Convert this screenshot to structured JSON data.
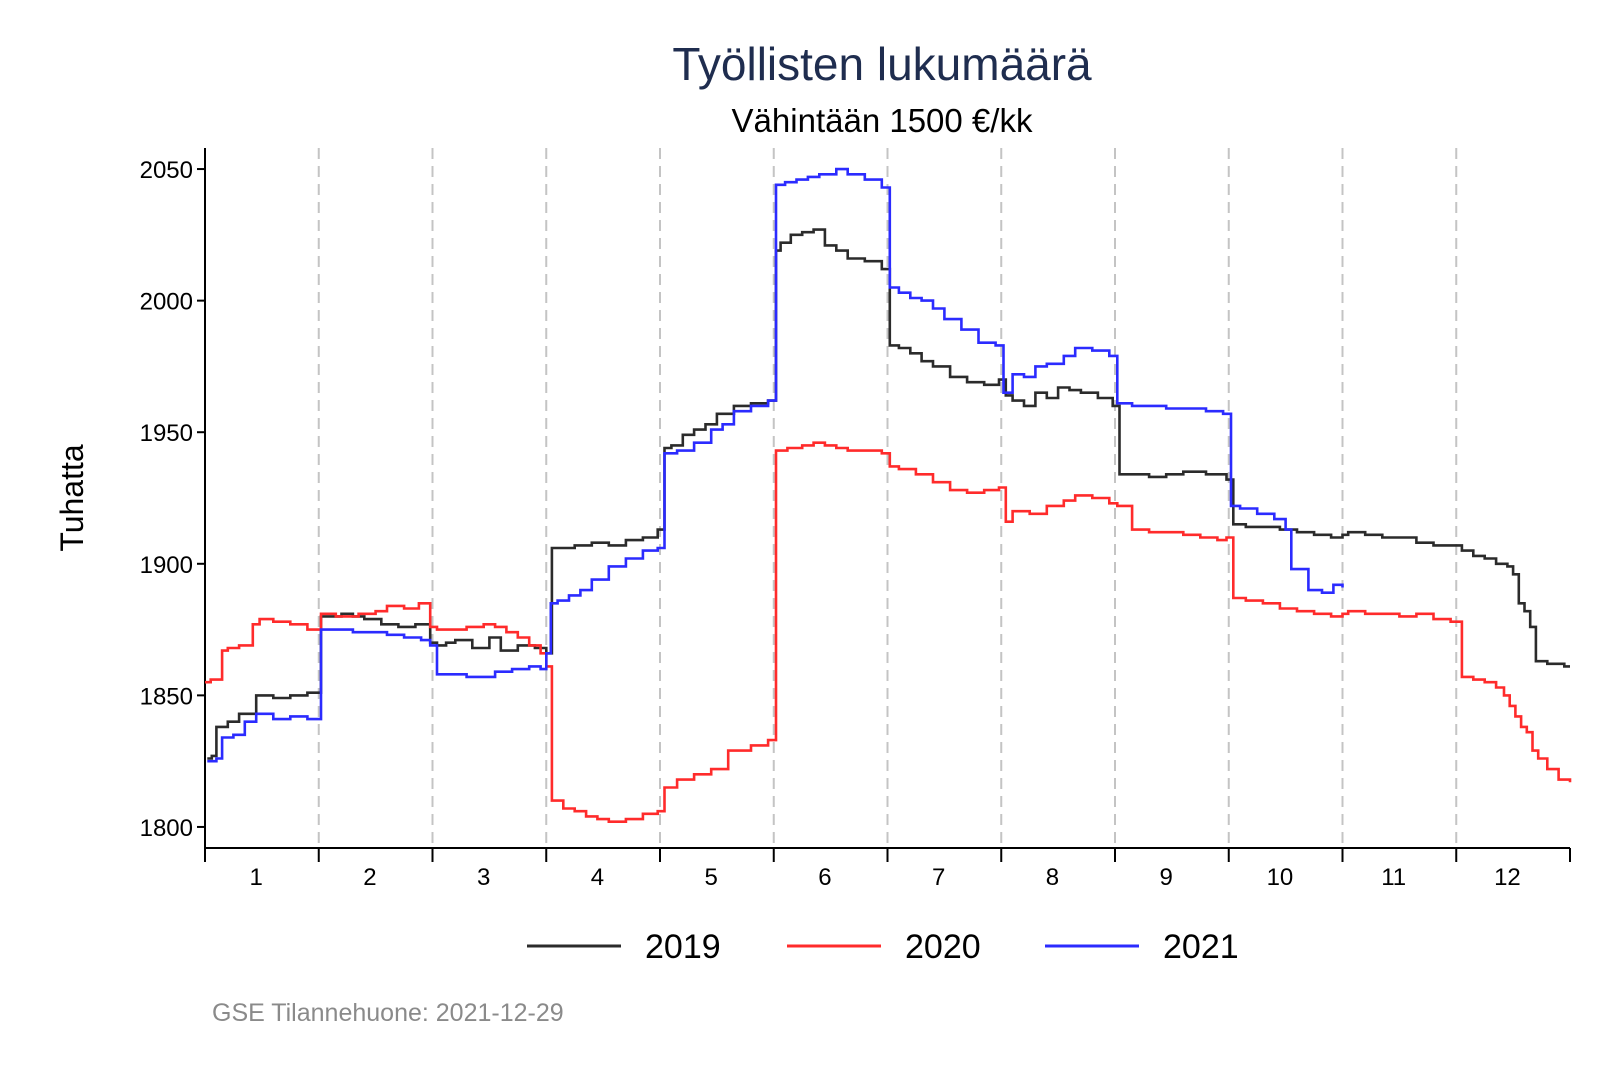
{
  "chart_data": {
    "type": "line",
    "title": "Työllisten lukumäärä",
    "subtitle": "Vähintään 1500 €/kk",
    "xlabel": "",
    "ylabel": "Tuhatta",
    "source": "GSE Tilannehuone: 2021-12-29",
    "x_categories": [
      "1",
      "2",
      "3",
      "4",
      "5",
      "6",
      "7",
      "8",
      "9",
      "10",
      "11",
      "12"
    ],
    "y_ticks": [
      1800,
      1850,
      1900,
      1950,
      2000,
      2050
    ],
    "ylim": [
      1792,
      2058
    ],
    "xlim": [
      1,
      13
    ],
    "month_boundaries": [
      2,
      3,
      4,
      5,
      6,
      7,
      8,
      9,
      10,
      11,
      12
    ],
    "grid": "dashed vertical lines at month boundaries",
    "legend_position": "bottom",
    "series": [
      {
        "name": "2019",
        "color": "#2b2b2b",
        "step": true,
        "x": [
          1.02,
          1.06,
          1.1,
          1.2,
          1.3,
          1.45,
          1.6,
          1.75,
          1.9,
          2.02,
          2.1,
          2.2,
          2.3,
          2.4,
          2.55,
          2.7,
          2.85,
          2.98,
          3.04,
          3.12,
          3.2,
          3.35,
          3.5,
          3.6,
          3.75,
          3.9,
          4.0,
          4.05,
          4.1,
          4.25,
          4.4,
          4.55,
          4.7,
          4.85,
          4.98,
          5.04,
          5.1,
          5.2,
          5.3,
          5.4,
          5.5,
          5.65,
          5.8,
          5.95,
          6.02,
          6.06,
          6.15,
          6.25,
          6.35,
          6.45,
          6.55,
          6.65,
          6.8,
          6.95,
          7.02,
          7.1,
          7.2,
          7.3,
          7.4,
          7.55,
          7.7,
          7.85,
          7.98,
          8.04,
          8.1,
          8.2,
          8.3,
          8.4,
          8.5,
          8.6,
          8.7,
          8.85,
          8.98,
          9.04,
          9.15,
          9.3,
          9.45,
          9.6,
          9.8,
          9.98,
          10.04,
          10.15,
          10.3,
          10.45,
          10.6,
          10.75,
          10.9,
          11.0,
          11.05,
          11.2,
          11.35,
          11.5,
          11.65,
          11.8,
          12.0,
          12.05,
          12.15,
          12.25,
          12.35,
          12.45,
          12.5,
          12.55,
          12.6,
          12.65,
          12.7,
          12.8,
          12.95,
          13.0
        ],
        "values": [
          1826,
          1827,
          1838,
          1840,
          1843,
          1850,
          1849,
          1850,
          1851,
          1880,
          1880,
          1881,
          1880,
          1879,
          1877,
          1876,
          1877,
          1870,
          1869,
          1870,
          1871,
          1868,
          1872,
          1867,
          1869,
          1868,
          1866,
          1906,
          1906,
          1907,
          1908,
          1907,
          1909,
          1910,
          1913,
          1944,
          1945,
          1949,
          1951,
          1953,
          1957,
          1960,
          1961,
          1962,
          2019,
          2022,
          2025,
          2026,
          2027,
          2021,
          2019,
          2016,
          2015,
          2012,
          1983,
          1982,
          1980,
          1977,
          1975,
          1971,
          1969,
          1968,
          1970,
          1964,
          1962,
          1960,
          1965,
          1963,
          1967,
          1966,
          1965,
          1963,
          1960,
          1934,
          1934,
          1933,
          1934,
          1935,
          1934,
          1932,
          1915,
          1914,
          1914,
          1913,
          1912,
          1911,
          1910,
          1911,
          1912,
          1911,
          1910,
          1910,
          1908,
          1907,
          1907,
          1905,
          1903,
          1902,
          1900,
          1899,
          1896,
          1885,
          1882,
          1876,
          1863,
          1862,
          1861,
          1861
        ]
      },
      {
        "name": "2020",
        "color": "#ff2b2b",
        "step": true,
        "x": [
          1.0,
          1.05,
          1.15,
          1.2,
          1.3,
          1.42,
          1.48,
          1.6,
          1.75,
          1.9,
          2.02,
          2.15,
          2.35,
          2.5,
          2.6,
          2.75,
          2.88,
          2.98,
          3.04,
          3.15,
          3.3,
          3.45,
          3.55,
          3.65,
          3.75,
          3.85,
          3.95,
          4.0,
          4.05,
          4.15,
          4.25,
          4.35,
          4.45,
          4.55,
          4.7,
          4.85,
          4.98,
          5.04,
          5.15,
          5.3,
          5.45,
          5.6,
          5.8,
          5.95,
          6.02,
          6.12,
          6.25,
          6.35,
          6.45,
          6.55,
          6.65,
          6.8,
          6.95,
          7.02,
          7.1,
          7.25,
          7.4,
          7.55,
          7.7,
          7.85,
          7.98,
          8.04,
          8.1,
          8.25,
          8.4,
          8.55,
          8.65,
          8.8,
          8.95,
          9.02,
          9.15,
          9.3,
          9.45,
          9.6,
          9.75,
          9.9,
          9.98,
          10.04,
          10.15,
          10.3,
          10.45,
          10.6,
          10.75,
          10.9,
          11.0,
          11.05,
          11.2,
          11.35,
          11.5,
          11.65,
          11.8,
          11.95,
          12.0,
          12.05,
          12.15,
          12.25,
          12.35,
          12.42,
          12.47,
          12.52,
          12.57,
          12.62,
          12.67,
          12.72,
          12.8,
          12.9,
          13.0
        ],
        "values": [
          1855,
          1856,
          1867,
          1868,
          1869,
          1877,
          1879,
          1878,
          1877,
          1875,
          1881,
          1880,
          1881,
          1882,
          1884,
          1883,
          1885,
          1876,
          1875,
          1875,
          1876,
          1877,
          1876,
          1874,
          1872,
          1869,
          1866,
          1861,
          1810,
          1807,
          1806,
          1804,
          1803,
          1802,
          1803,
          1805,
          1806,
          1815,
          1818,
          1820,
          1822,
          1829,
          1831,
          1833,
          1943,
          1944,
          1945,
          1946,
          1945,
          1944,
          1943,
          1943,
          1942,
          1937,
          1936,
          1934,
          1931,
          1928,
          1927,
          1928,
          1929,
          1916,
          1920,
          1919,
          1922,
          1924,
          1926,
          1925,
          1923,
          1922,
          1913,
          1912,
          1912,
          1911,
          1910,
          1909,
          1910,
          1887,
          1886,
          1885,
          1883,
          1882,
          1881,
          1880,
          1881,
          1882,
          1881,
          1881,
          1880,
          1881,
          1879,
          1878,
          1878,
          1857,
          1856,
          1855,
          1853,
          1850,
          1846,
          1842,
          1838,
          1836,
          1829,
          1826,
          1822,
          1818,
          1817
        ]
      },
      {
        "name": "2021",
        "color": "#2b2bff",
        "step": true,
        "x": [
          1.02,
          1.1,
          1.15,
          1.25,
          1.35,
          1.45,
          1.6,
          1.75,
          1.9,
          2.02,
          2.15,
          2.3,
          2.45,
          2.6,
          2.75,
          2.9,
          2.98,
          3.04,
          3.15,
          3.3,
          3.45,
          3.55,
          3.7,
          3.85,
          3.95,
          4.0,
          4.04,
          4.1,
          4.2,
          4.3,
          4.4,
          4.55,
          4.7,
          4.85,
          4.98,
          5.04,
          5.15,
          5.3,
          5.45,
          5.55,
          5.65,
          5.8,
          5.95,
          6.02,
          6.1,
          6.2,
          6.3,
          6.4,
          6.55,
          6.65,
          6.8,
          6.95,
          7.02,
          7.1,
          7.2,
          7.3,
          7.4,
          7.5,
          7.65,
          7.8,
          7.95,
          8.02,
          8.1,
          8.2,
          8.3,
          8.4,
          8.55,
          8.65,
          8.8,
          8.95,
          9.02,
          9.15,
          9.3,
          9.45,
          9.6,
          9.8,
          9.95,
          10.02,
          10.1,
          10.25,
          10.4,
          10.5,
          10.55,
          10.7,
          10.82,
          10.92,
          11.0
        ],
        "values": [
          1825,
          1826,
          1834,
          1835,
          1840,
          1843,
          1841,
          1842,
          1841,
          1875,
          1875,
          1874,
          1874,
          1873,
          1872,
          1871,
          1869,
          1858,
          1858,
          1857,
          1857,
          1859,
          1860,
          1861,
          1860,
          1866,
          1885,
          1886,
          1888,
          1890,
          1894,
          1899,
          1902,
          1905,
          1906,
          1942,
          1943,
          1946,
          1951,
          1953,
          1958,
          1960,
          1962,
          2044,
          2045,
          2046,
          2047,
          2048,
          2050,
          2048,
          2046,
          2043,
          2005,
          2003,
          2001,
          2000,
          1997,
          1993,
          1989,
          1984,
          1983,
          1965,
          1972,
          1971,
          1975,
          1976,
          1979,
          1982,
          1981,
          1979,
          1961,
          1960,
          1960,
          1959,
          1959,
          1958,
          1957,
          1922,
          1921,
          1919,
          1917,
          1913,
          1898,
          1890,
          1889,
          1892,
          1891
        ]
      }
    ]
  }
}
